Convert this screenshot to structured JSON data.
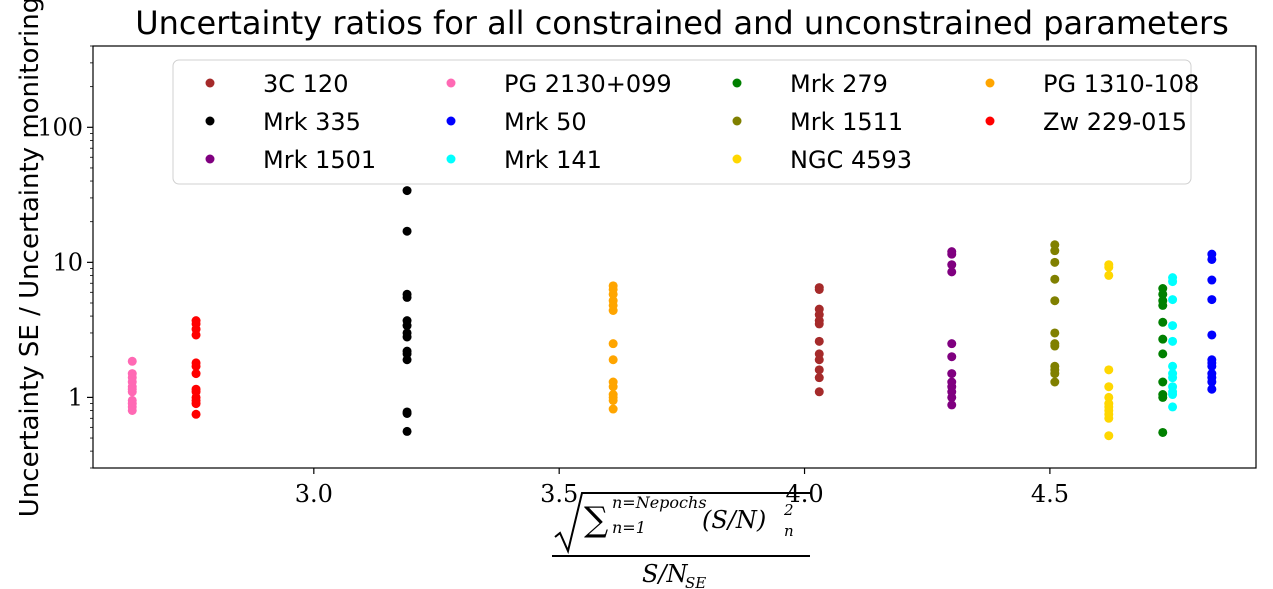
{
  "chart_data": {
    "type": "scatter",
    "title": "Uncertainty ratios for all constrained and unconstrained parameters",
    "ylabel": "Uncertainty SE / Uncertainty monitoring",
    "xlabel": {
      "numerator_root": "√",
      "sum": "∑",
      "sum_upper": "n=Nepochs",
      "sum_lower": "n=1",
      "term": "(S/N)",
      "term_sup": "2",
      "term_sub": "n",
      "denominator": "S/N",
      "denominator_sub": "SE"
    },
    "xlim": [
      2.55,
      4.92
    ],
    "ylim": [
      0.3,
      400
    ],
    "yscale": "log",
    "x_ticks": [
      {
        "value": 3.0,
        "label": "3.0"
      },
      {
        "value": 3.5,
        "label": "3.5"
      },
      {
        "value": 4.0,
        "label": "4.0"
      },
      {
        "value": 4.5,
        "label": "4.5"
      }
    ],
    "y_ticks": [
      {
        "value": 1,
        "label": "1"
      },
      {
        "value": 10,
        "label": "10"
      },
      {
        "value": 100,
        "label": "100"
      }
    ],
    "legend_position": "upper-center",
    "legend_columns": 4,
    "series": [
      {
        "name": "3C 120",
        "color": "#a52a2a",
        "x": 4.03,
        "y": [
          6.5,
          6.3,
          4.5,
          4.1,
          3.7,
          3.5,
          2.6,
          2.1,
          1.9,
          1.6,
          1.4,
          1.1
        ]
      },
      {
        "name": "Mrk 335",
        "color": "#000000",
        "x": 3.19,
        "y": [
          34,
          17,
          5.8,
          5.5,
          3.7,
          3.4,
          3.0,
          2.8,
          2.2,
          2.1,
          1.9,
          0.78,
          0.76,
          0.56
        ]
      },
      {
        "name": "Mrk 1501",
        "color": "#800080",
        "x": 4.3,
        "y": [
          12,
          11.5,
          9.6,
          8.5,
          2.5,
          2.0,
          1.5,
          1.3,
          1.2,
          1.1,
          1.0,
          0.88
        ]
      },
      {
        "name": "PG 2130+099",
        "color": "#ff69b4",
        "x": 2.63,
        "y": [
          1.85,
          1.5,
          1.4,
          1.3,
          1.2,
          1.15,
          1.1,
          0.95,
          0.9,
          0.85,
          0.8
        ]
      },
      {
        "name": "Mrk 50",
        "color": "#0000ff",
        "x": 4.83,
        "y": [
          11.5,
          10.5,
          7.4,
          5.3,
          2.9,
          1.9,
          1.8,
          1.7,
          1.5,
          1.4,
          1.3,
          1.15
        ]
      },
      {
        "name": "Mrk 141",
        "color": "#00ffff",
        "x": 4.75,
        "y": [
          7.7,
          7.2,
          5.3,
          3.4,
          2.6,
          1.7,
          1.5,
          1.4,
          1.2,
          1.1,
          1.05,
          0.85
        ]
      },
      {
        "name": "Mrk 279",
        "color": "#008000",
        "x": 4.73,
        "y": [
          6.4,
          5.8,
          5.2,
          4.8,
          3.6,
          2.7,
          2.1,
          1.3,
          1.05,
          1.0,
          0.55
        ]
      },
      {
        "name": "Mrk 1511",
        "color": "#808000",
        "x": 4.51,
        "y": [
          13.5,
          12.2,
          10,
          7.5,
          5.2,
          3.0,
          2.5,
          2.4,
          1.7,
          1.6,
          1.5,
          1.3
        ]
      },
      {
        "name": "NGC 4593",
        "color": "#ffd700",
        "x": 4.62,
        "y": [
          9.6,
          9.2,
          8.0,
          1.6,
          1.2,
          1.0,
          0.9,
          0.85,
          0.8,
          0.75,
          0.7,
          0.52
        ]
      },
      {
        "name": "PG 1310-108",
        "color": "#ffa500",
        "x": 3.61,
        "y": [
          6.7,
          6.3,
          5.8,
          5.2,
          4.8,
          4.4,
          2.5,
          1.9,
          1.3,
          1.2,
          1.05,
          1.0,
          0.95,
          0.82
        ]
      },
      {
        "name": "Zw 229-015",
        "color": "#ff0000",
        "x": 2.76,
        "y": [
          3.7,
          3.5,
          3.2,
          2.9,
          1.8,
          1.7,
          1.5,
          1.15,
          1.1,
          1.0,
          0.95,
          0.9,
          0.75
        ]
      }
    ]
  }
}
